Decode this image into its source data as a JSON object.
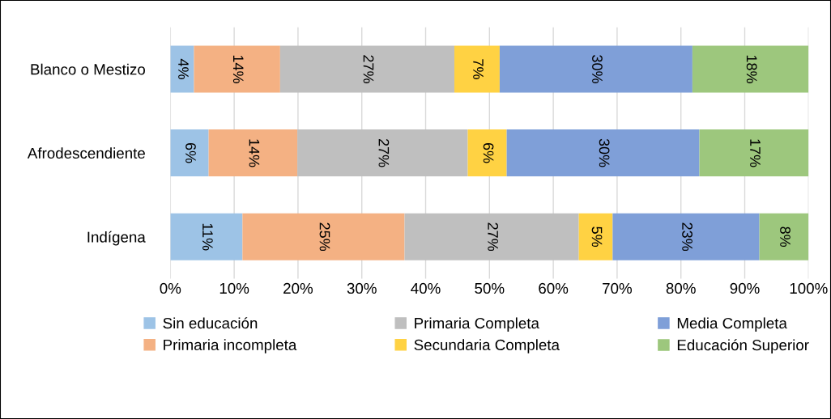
{
  "chart_data": {
    "type": "bar",
    "orientation": "horizontal",
    "stacked": true,
    "categories": [
      "Blanco o Mestizo",
      "Afrodescendiente",
      "Indígena"
    ],
    "series": [
      {
        "name": "Sin educación",
        "color": "#9dc3e6",
        "values": [
          3.7,
          6.0,
          11.3
        ],
        "value_labels": [
          "4%",
          "6%",
          "11%"
        ]
      },
      {
        "name": "Primaria incompleta",
        "color": "#f4b183",
        "values": [
          13.5,
          13.9,
          25.4
        ],
        "value_labels": [
          "14%",
          "14%",
          "25%"
        ]
      },
      {
        "name": "Primaria Completa",
        "color": "#bfbfbf",
        "values": [
          27.3,
          26.7,
          27.3
        ],
        "value_labels": [
          "27%",
          "27%",
          "27%"
        ]
      },
      {
        "name": "Secundaria Completa",
        "color": "#ffd243",
        "values": [
          7.1,
          6.1,
          5.3
        ],
        "value_labels": [
          "7%",
          "6%",
          "5%"
        ]
      },
      {
        "name": "Media Completa",
        "color": "#7f9fd8",
        "values": [
          30.2,
          30.2,
          23.0
        ],
        "value_labels": [
          "30%",
          "30%",
          "23%"
        ]
      },
      {
        "name": "Educación Superior",
        "color": "#9dc77d",
        "values": [
          18.2,
          17.1,
          7.7
        ],
        "value_labels": [
          "18%",
          "17%",
          "8%"
        ]
      }
    ],
    "xlim": [
      0,
      100
    ],
    "xticks": [
      {
        "value": 0,
        "label": "0%"
      },
      {
        "value": 10,
        "label": "10%"
      },
      {
        "value": 20,
        "label": "20%"
      },
      {
        "value": 30,
        "label": "30%"
      },
      {
        "value": 40,
        "label": "40%"
      },
      {
        "value": 50,
        "label": "50%"
      },
      {
        "value": 60,
        "label": "60%"
      },
      {
        "value": 70,
        "label": "70%"
      },
      {
        "value": 80,
        "label": "80%"
      },
      {
        "value": 90,
        "label": "90%"
      },
      {
        "value": 100,
        "label": "100%"
      }
    ],
    "grid": "x",
    "legend": "bottom"
  }
}
